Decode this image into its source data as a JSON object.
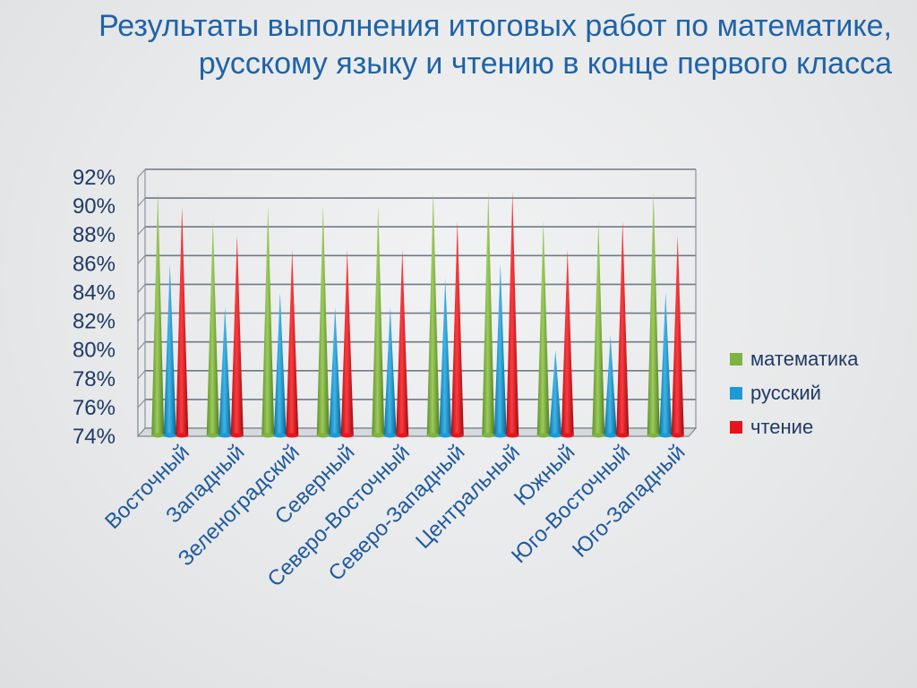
{
  "slide": {
    "title": "Результаты выполнения итоговых работ по математике, русскому языку и чтению в конце первого класса"
  },
  "chart_data": {
    "type": "bar",
    "style": "3d-cones",
    "categories": [
      "Восточный",
      "Западный",
      "Зеленоградский",
      "Северный",
      "Северо-Восточный",
      "Северо-Западный",
      "Центральный",
      "Южный",
      "Юго-Восточный",
      "Юго-Западный"
    ],
    "series": [
      {
        "name": "математика",
        "color": "#7cb341",
        "values": [
          91,
          89,
          90,
          90,
          90,
          91,
          91,
          89,
          89,
          91
        ]
      },
      {
        "name": "русский",
        "color": "#1a9ad6",
        "values": [
          86,
          83,
          84,
          83,
          83,
          85,
          86,
          80,
          81,
          84
        ]
      },
      {
        "name": "чтение",
        "color": "#e8141c",
        "values": [
          90,
          88,
          87,
          87,
          87,
          89,
          91,
          87,
          89,
          88
        ]
      }
    ],
    "ylim": [
      74,
      92
    ],
    "yticks": [
      "74%",
      "76%",
      "78%",
      "80%",
      "82%",
      "84%",
      "86%",
      "88%",
      "90%",
      "92%"
    ],
    "ytick_values": [
      74,
      76,
      78,
      80,
      82,
      84,
      86,
      88,
      90,
      92
    ],
    "grid": true,
    "legend_position": "right",
    "xlabel": "",
    "ylabel": ""
  }
}
